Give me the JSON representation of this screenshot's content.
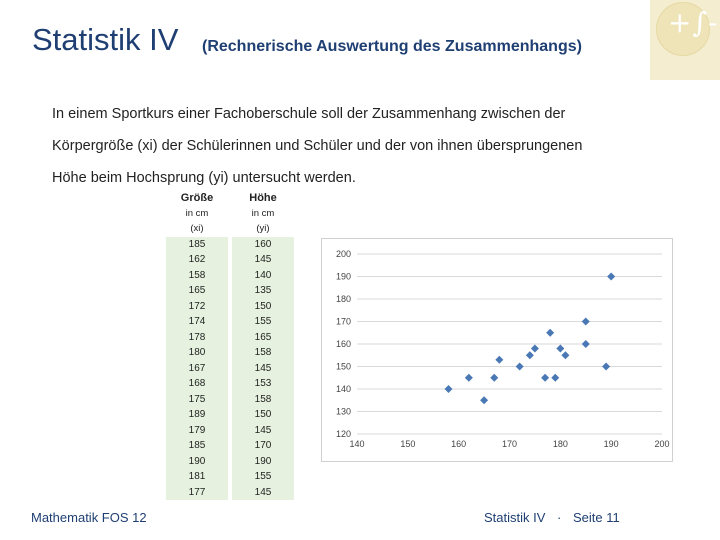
{
  "header": {
    "title": "Statistik IV",
    "subtitle": "(Rechnerische Auswertung des Zusammenhangs)",
    "logo_glyph": "+∫-"
  },
  "intro": {
    "line1": "In einem Sportkurs einer Fachoberschule soll der Zusammenhang zwischen der",
    "line2": "Körpergröße (xi) der Schülerinnen und Schüler und der von ihnen übersprungenen",
    "line3": "Höhe beim Hochsprung (yi) untersucht werden."
  },
  "table": {
    "col1_header": "Größe",
    "col2_header": "Höhe",
    "col1_unit": "in cm",
    "col2_unit": "in cm",
    "col1_var": "(xi)",
    "col2_var": "(yi)",
    "rows": [
      [
        "185",
        "160"
      ],
      [
        "162",
        "145"
      ],
      [
        "158",
        "140"
      ],
      [
        "165",
        "135"
      ],
      [
        "172",
        "150"
      ],
      [
        "174",
        "155"
      ],
      [
        "178",
        "165"
      ],
      [
        "180",
        "158"
      ],
      [
        "167",
        "145"
      ],
      [
        "168",
        "153"
      ],
      [
        "175",
        "158"
      ],
      [
        "189",
        "150"
      ],
      [
        "179",
        "145"
      ],
      [
        "185",
        "170"
      ],
      [
        "190",
        "190"
      ],
      [
        "181",
        "155"
      ],
      [
        "177",
        "145"
      ]
    ]
  },
  "chart_data": {
    "type": "scatter",
    "title": "",
    "xlabel": "",
    "ylabel": "",
    "xlim": [
      140,
      200
    ],
    "ylim": [
      120,
      200
    ],
    "xticks": [
      140,
      150,
      160,
      170,
      180,
      190,
      200
    ],
    "yticks": [
      120,
      130,
      140,
      150,
      160,
      170,
      180,
      190,
      200
    ],
    "grid": "horizontal",
    "marker_color": "#4a78b5",
    "points": [
      [
        185,
        160
      ],
      [
        162,
        145
      ],
      [
        158,
        140
      ],
      [
        165,
        135
      ],
      [
        172,
        150
      ],
      [
        174,
        155
      ],
      [
        178,
        165
      ],
      [
        180,
        158
      ],
      [
        167,
        145
      ],
      [
        168,
        153
      ],
      [
        175,
        158
      ],
      [
        189,
        150
      ],
      [
        179,
        145
      ],
      [
        185,
        170
      ],
      [
        190,
        190
      ],
      [
        181,
        155
      ],
      [
        177,
        145
      ]
    ]
  },
  "footer": {
    "left": "Mathematik FOS 12",
    "right_label": "Statistik IV",
    "separator": "·",
    "page_prefix": "Seite",
    "page_number": "11"
  }
}
